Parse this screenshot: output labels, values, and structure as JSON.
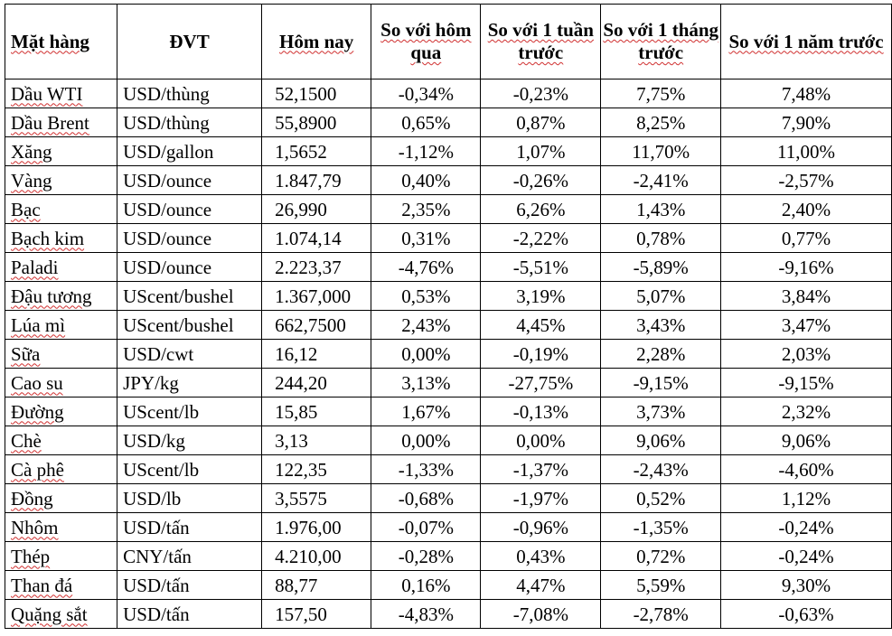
{
  "table": {
    "headers": [
      "Mặt hàng",
      "ĐVT",
      "Hôm nay",
      "So với hôm qua",
      "So với 1 tuần trước",
      "So với 1 tháng trước",
      "So với 1 năm trước"
    ],
    "rows": [
      [
        "Dầu WTI",
        "USD/thùng",
        "52,1500",
        "-0,34%",
        "-0,23%",
        "7,75%",
        "7,48%"
      ],
      [
        "Dầu Brent",
        "USD/thùng",
        "55,8900",
        "0,65%",
        "0,87%",
        "8,25%",
        "7,90%"
      ],
      [
        "Xăng",
        "USD/gallon",
        "1,5652",
        "-1,12%",
        "1,07%",
        "11,70%",
        "11,00%"
      ],
      [
        "Vàng",
        "USD/ounce",
        "1.847,79",
        "0,40%",
        "-0,26%",
        "-2,41%",
        "-2,57%"
      ],
      [
        "Bạc",
        "USD/ounce",
        "26,990",
        "2,35%",
        "6,26%",
        "1,43%",
        "2,40%"
      ],
      [
        "Bạch kim",
        "USD/ounce",
        "1.074,14",
        "0,31%",
        "-2,22%",
        "0,78%",
        "0,77%"
      ],
      [
        "Paladi",
        "USD/ounce",
        "2.223,37",
        "-4,76%",
        "-5,51%",
        "-5,89%",
        "-9,16%"
      ],
      [
        "Đậu tương",
        "UScent/bushel",
        "1.367,000",
        "0,53%",
        "3,19%",
        "5,07%",
        "3,84%"
      ],
      [
        "Lúa mì",
        "UScent/bushel",
        "662,7500",
        "2,43%",
        "4,45%",
        "3,43%",
        "3,47%"
      ],
      [
        "Sữa",
        "USD/cwt",
        "16,12",
        "0,00%",
        "-0,19%",
        "2,28%",
        "2,03%"
      ],
      [
        "Cao su",
        "JPY/kg",
        "244,20",
        "3,13%",
        "-27,75%",
        "-9,15%",
        "-9,15%"
      ],
      [
        "Đường",
        "UScent/lb",
        "15,85",
        "1,67%",
        "-0,13%",
        "3,73%",
        "2,32%"
      ],
      [
        "Chè",
        "USD/kg",
        "3,13",
        "0,00%",
        "0,00%",
        "9,06%",
        "9,06%"
      ],
      [
        "Cà phê",
        "UScent/lb",
        "122,35",
        "-1,33%",
        "-1,37%",
        "-2,43%",
        "-4,60%"
      ],
      [
        "Đồng",
        "USD/lb",
        "3,5575",
        "-0,68%",
        "-1,97%",
        "0,52%",
        "1,12%"
      ],
      [
        "Nhôm",
        "USD/tấn",
        "1.976,00",
        "-0,07%",
        "-0,96%",
        "-1,35%",
        "-0,24%"
      ],
      [
        "Thép",
        "CNY/tấn",
        "4.210,00",
        "-0,28%",
        "0,43%",
        "0,72%",
        "-0,24%"
      ],
      [
        "Than đá",
        "USD/tấn",
        "88,77",
        "0,16%",
        "4,47%",
        "5,59%",
        "9,30%"
      ],
      [
        "Quặng sắt",
        "USD/tấn",
        "157,50",
        "-4,83%",
        "-7,08%",
        "-2,78%",
        "-0,63%"
      ]
    ]
  }
}
